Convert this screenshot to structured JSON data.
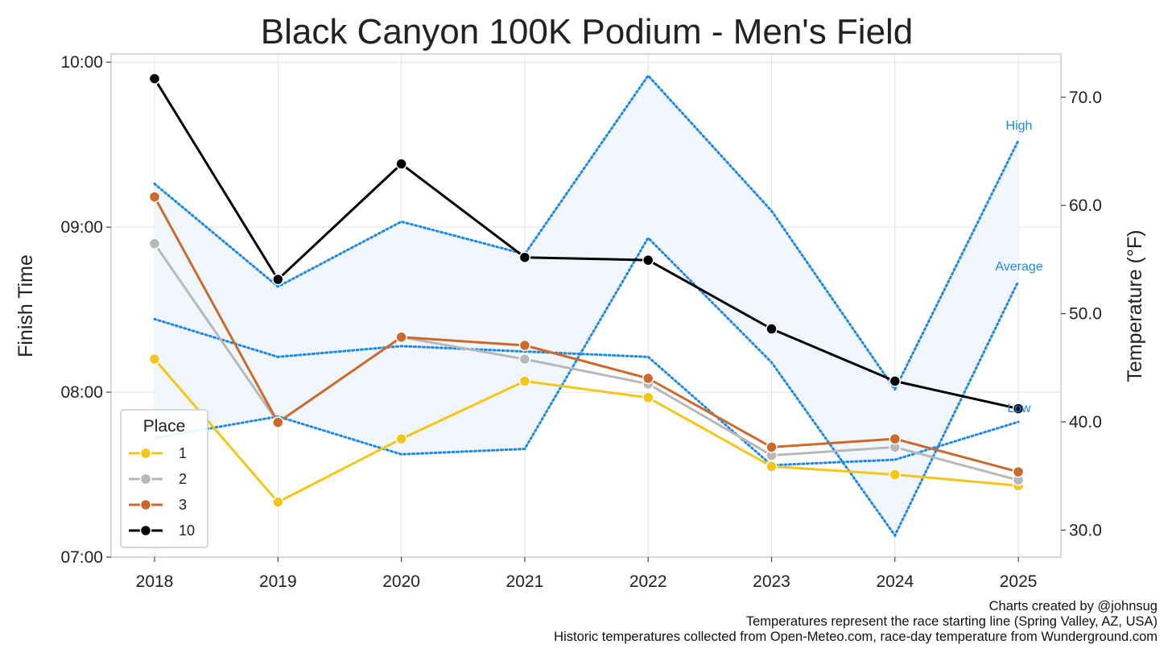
{
  "chart_data": {
    "type": "line",
    "title": "Black Canyon 100K Podium - Men's Field",
    "xlabel": "",
    "ylabel": "Finish Time",
    "y2label": "Temperature (°F)",
    "x": [
      "2018",
      "2019",
      "2020",
      "2021",
      "2022",
      "2023",
      "2024",
      "2025"
    ],
    "y_ticks": [
      "07:00",
      "08:00",
      "09:00",
      "10:00"
    ],
    "ylim_minutes": [
      420,
      603
    ],
    "y2_ticks": [
      "30.0",
      "40.0",
      "50.0",
      "60.0",
      "70.0"
    ],
    "y2lim": [
      27.5,
      74
    ],
    "grid": true,
    "legend": {
      "title": "Place",
      "placement": "lower-left"
    },
    "series": [
      {
        "name": "1",
        "color": "#f5c518",
        "values_minutes": [
          492,
          440,
          463,
          484,
          478,
          453,
          450,
          446
        ]
      },
      {
        "name": "2",
        "color": "#b8b8b8",
        "values_minutes": [
          534,
          469,
          500,
          492,
          483,
          457,
          460,
          448
        ]
      },
      {
        "name": "3",
        "color": "#cc6a2e",
        "values_minutes": [
          551,
          469,
          500,
          497,
          485,
          460,
          463,
          451
        ]
      },
      {
        "name": "10",
        "color": "#000000",
        "values_minutes": [
          594,
          521,
          563,
          529,
          528,
          503,
          484,
          474
        ]
      }
    ],
    "temperature": {
      "color": "#1e88e5",
      "fill": "#eef5fc",
      "labels": {
        "high": "High",
        "average": "Average",
        "low": "Low"
      },
      "high_outer": [
        62,
        52.5,
        58.5,
        55.5,
        72,
        59.5,
        43,
        66
      ],
      "low_outer": [
        38.5,
        40.5,
        37,
        37.5,
        57,
        45.5,
        29.5,
        53
      ],
      "high_inner": [
        49.5,
        46,
        47,
        46.5,
        46,
        36,
        36.5,
        40
      ],
      "low_inner": [
        49.5,
        46,
        47,
        46.5,
        46,
        36,
        36.5,
        40
      ]
    }
  },
  "credits": [
    "Charts created by @johnsug",
    "Temperatures represent the race starting line (Spring Valley, AZ, USA)",
    "Historic temperatures collected from Open-Meteo.com, race-day temperature from Wunderground.com"
  ]
}
